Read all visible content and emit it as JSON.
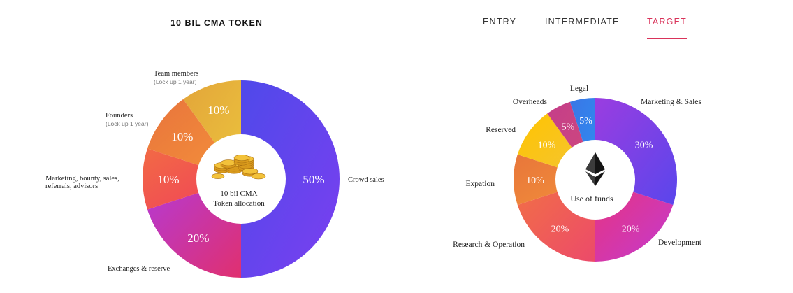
{
  "left": {
    "title": "10 BIL CMA TOKEN",
    "center_text": [
      "10 bil CMA",
      "Token allocation"
    ],
    "center_image": "gold-coins-icon"
  },
  "right": {
    "tabs": [
      {
        "label": "ENTRY",
        "active": false
      },
      {
        "label": "INTERMEDIATE",
        "active": false
      },
      {
        "label": "TARGET",
        "active": true
      }
    ],
    "accent_color": "#d9335a",
    "center_text": "Use of funds",
    "center_icon": "ethereum-icon"
  },
  "chart_data": [
    {
      "type": "pie",
      "title": "10 BIL CMA TOKEN",
      "categories": [
        "Crowd sales",
        "Exchanges & reserve",
        "Marketing, bounty, sales, referrals, advisors",
        "Founders",
        "Team members"
      ],
      "category_notes": [
        "",
        "",
        "",
        "(Lock up 1 year)",
        "(Lock up 1 year)"
      ],
      "values": [
        50,
        20,
        10,
        10,
        10
      ],
      "value_labels": [
        "50%",
        "20%",
        "10%",
        "10%",
        "10%"
      ],
      "colors": [
        [
          "#7b3ff0",
          "#4f49ea"
        ],
        [
          "#e0306f",
          "#b43ad6"
        ],
        [
          "#f0405a",
          "#f26a45"
        ],
        [
          "#f5923a",
          "#e8743c"
        ],
        [
          "#ebc33d",
          "#e3a53a"
        ]
      ],
      "center_label": "10 bil CMA Token allocation"
    },
    {
      "type": "pie",
      "title": "Use of funds",
      "categories": [
        "Marketing & Sales",
        "Development",
        "Research & Operation",
        "Expation",
        "Reserved",
        "Overheads",
        "Legal"
      ],
      "values": [
        30,
        20,
        20,
        10,
        10,
        5,
        5
      ],
      "value_labels": [
        "30%",
        "20%",
        "20%",
        "10%",
        "10%",
        "5%",
        "5%"
      ],
      "colors": [
        [
          "#5a46ec",
          "#9a3de0"
        ],
        [
          "#c33ad0",
          "#e8347d"
        ],
        [
          "#ec4a6a",
          "#f27045"
        ],
        [
          "#f2903a",
          "#e8763a"
        ],
        [
          "#f2c53a",
          "#ffc400"
        ],
        [
          "#d04a7a",
          "#c43e8a"
        ],
        [
          "#2f8cf0",
          "#3a76e6"
        ]
      ],
      "center_label": "Use of funds"
    }
  ]
}
